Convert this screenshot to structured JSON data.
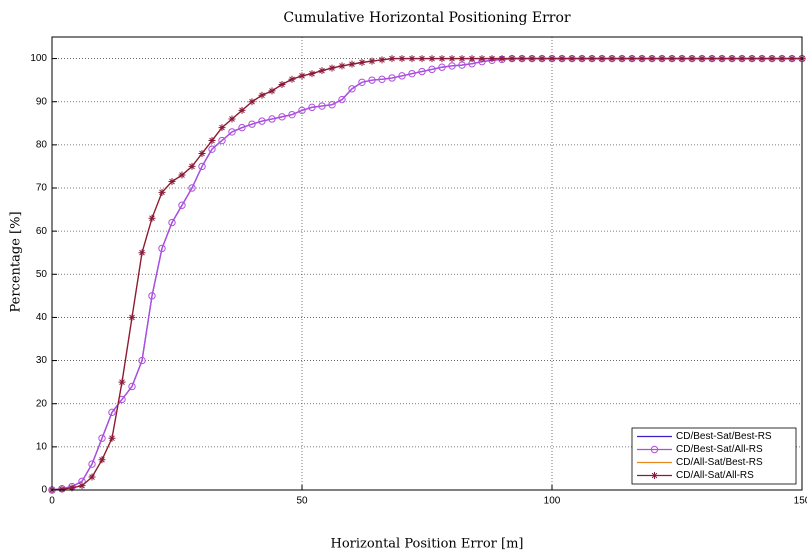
{
  "chart_data": {
    "type": "line",
    "title": "Cumulative Horizontal Positioning Error",
    "xlabel": "Horizontal Position Error [m]",
    "ylabel": "Percentage [%]",
    "x": [
      0,
      2,
      4,
      6,
      8,
      10,
      12,
      14,
      16,
      18,
      20,
      22,
      24,
      26,
      28,
      30,
      32,
      34,
      36,
      38,
      40,
      42,
      44,
      46,
      48,
      50,
      52,
      54,
      56,
      58,
      60,
      62,
      64,
      66,
      68,
      70,
      72,
      74,
      76,
      78,
      80,
      82,
      84,
      86,
      88,
      90,
      92,
      94,
      96,
      98,
      100,
      102,
      104,
      106,
      108,
      110,
      112,
      114,
      116,
      118,
      120,
      122,
      124,
      126,
      128,
      130,
      132,
      134,
      136,
      138,
      140,
      142,
      144,
      146,
      148,
      150
    ],
    "series": [
      {
        "name": "CD/Best-Sat/Best-RS",
        "color": "#3a1fc8",
        "values": [
          0,
          0.3,
          0.8,
          2,
          6,
          12,
          18,
          21,
          24,
          30,
          45,
          56,
          62,
          66,
          70,
          75,
          79,
          81,
          83,
          84,
          84.8,
          85.5,
          86,
          86.5,
          87,
          88,
          88.7,
          89,
          89.3,
          90.5,
          93,
          94.5,
          95,
          95.2,
          95.5,
          96,
          96.5,
          97,
          97.5,
          98,
          98.3,
          98.5,
          98.8,
          99.3,
          99.6,
          99.8,
          100,
          100,
          100,
          100,
          100,
          100,
          100,
          100,
          100,
          100,
          100,
          100,
          100,
          100,
          100,
          100,
          100,
          100,
          100,
          100,
          100,
          100,
          100,
          100,
          100,
          100,
          100,
          100,
          100,
          100
        ]
      },
      {
        "name": "CD/Best-Sat/All-RS",
        "color": "#b04ee0",
        "marker": "o",
        "values": [
          0,
          0.3,
          0.8,
          2,
          6,
          12,
          18,
          21,
          24,
          30,
          45,
          56,
          62,
          66,
          70,
          75,
          79,
          81,
          83,
          84,
          84.8,
          85.5,
          86,
          86.5,
          87,
          88,
          88.7,
          89,
          89.3,
          90.5,
          93,
          94.5,
          95,
          95.2,
          95.5,
          96,
          96.5,
          97,
          97.5,
          98,
          98.3,
          98.5,
          98.8,
          99.3,
          99.6,
          99.8,
          100,
          100,
          100,
          100,
          100,
          100,
          100,
          100,
          100,
          100,
          100,
          100,
          100,
          100,
          100,
          100,
          100,
          100,
          100,
          100,
          100,
          100,
          100,
          100,
          100,
          100,
          100,
          100,
          100,
          100
        ]
      },
      {
        "name": "CD/All-Sat/Best-RS",
        "color": "#e8891c",
        "values": [
          0,
          0.2,
          0.5,
          1,
          3,
          7,
          12,
          25,
          40,
          55,
          63,
          69,
          71.5,
          73,
          75,
          78,
          81,
          84,
          86,
          88,
          90,
          91.5,
          92.5,
          94,
          95.2,
          96,
          96.5,
          97.2,
          97.8,
          98.3,
          98.7,
          99.1,
          99.4,
          99.7,
          100,
          100,
          100,
          100,
          100,
          100,
          100,
          100,
          100,
          100,
          100,
          100,
          100,
          100,
          100,
          100,
          100,
          100,
          100,
          100,
          100,
          100,
          100,
          100,
          100,
          100,
          100,
          100,
          100,
          100,
          100,
          100,
          100,
          100,
          100,
          100,
          100,
          100,
          100,
          100,
          100,
          100
        ]
      },
      {
        "name": "CD/All-Sat/All-RS",
        "color": "#8a1a3c",
        "marker": "*",
        "values": [
          0,
          0.2,
          0.5,
          1,
          3,
          7,
          12,
          25,
          40,
          55,
          63,
          69,
          71.5,
          73,
          75,
          78,
          81,
          84,
          86,
          88,
          90,
          91.5,
          92.5,
          94,
          95.2,
          96,
          96.5,
          97.2,
          97.8,
          98.3,
          98.7,
          99.1,
          99.4,
          99.7,
          100,
          100,
          100,
          100,
          100,
          100,
          100,
          100,
          100,
          100,
          100,
          100,
          100,
          100,
          100,
          100,
          100,
          100,
          100,
          100,
          100,
          100,
          100,
          100,
          100,
          100,
          100,
          100,
          100,
          100,
          100,
          100,
          100,
          100,
          100,
          100,
          100,
          100,
          100,
          100,
          100,
          100
        ]
      }
    ],
    "xlim": [
      0,
      150
    ],
    "xticks": [
      0,
      50,
      100,
      150
    ],
    "ylim": [
      0,
      105
    ],
    "yticks": [
      0,
      10,
      20,
      30,
      40,
      50,
      60,
      70,
      80,
      90,
      100
    ],
    "grid": true,
    "legend": "lower right"
  }
}
